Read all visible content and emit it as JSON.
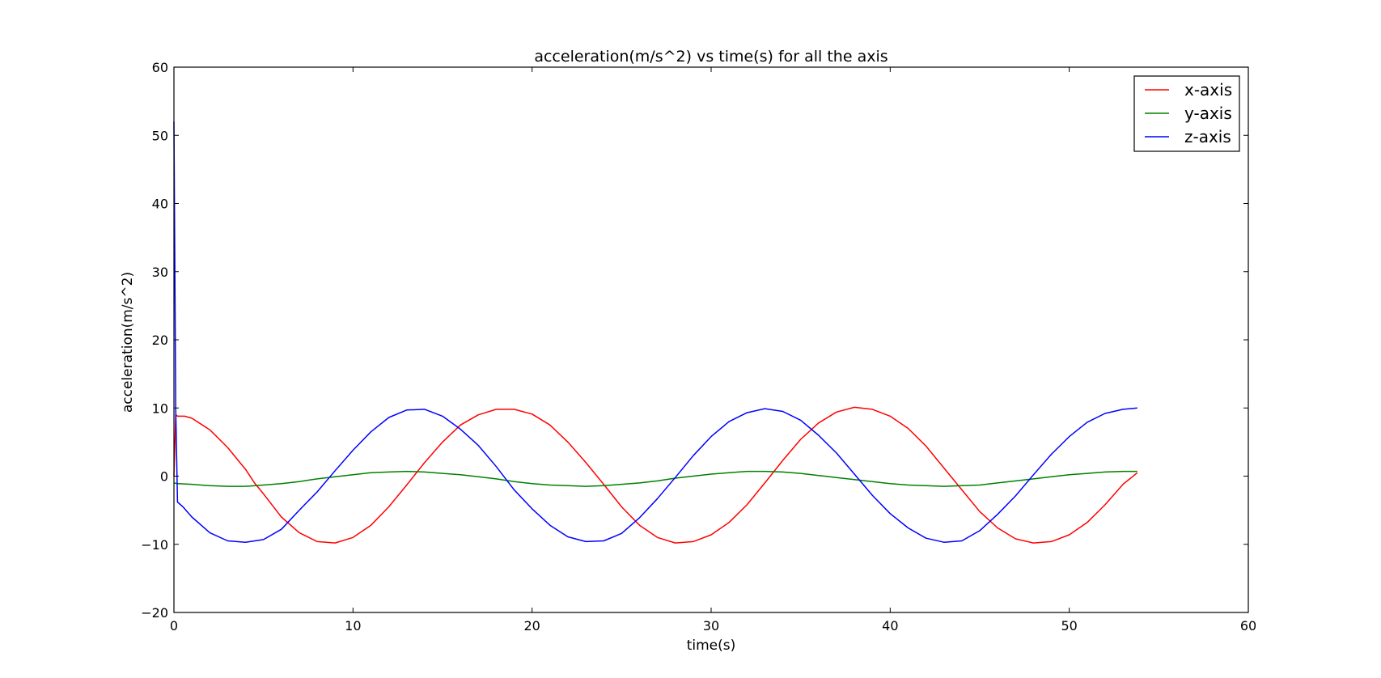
{
  "chart_data": {
    "type": "line",
    "title": "acceleration(m/s^2) vs time(s) for all the axis",
    "xlabel": "time(s)",
    "ylabel": "acceleration(m/s^2)",
    "xlim": [
      0,
      60
    ],
    "ylim": [
      -20,
      60
    ],
    "xticks": [
      0,
      10,
      20,
      30,
      40,
      50,
      60
    ],
    "yticks": [
      -20,
      -10,
      0,
      10,
      20,
      30,
      40,
      50,
      60
    ],
    "grid": false,
    "legend_position": "top-right",
    "series": [
      {
        "name": "x-axis",
        "color": "#ff0000",
        "x": [
          0,
          0.1,
          0.2,
          0.6,
          1,
          2,
          3,
          4,
          4.5,
          5,
          6,
          7,
          8,
          9,
          10,
          11,
          12,
          13,
          14,
          15,
          16,
          17,
          18,
          19,
          20,
          21,
          22,
          23,
          24,
          25,
          26,
          27,
          28,
          29,
          30,
          31,
          32,
          33,
          34,
          35,
          36,
          37,
          38,
          39,
          40,
          41,
          42,
          43,
          44,
          45,
          46,
          47,
          48,
          49,
          50,
          51,
          52,
          53,
          53.8
        ],
        "y": [
          0,
          9,
          8.8,
          8.8,
          8.5,
          6.8,
          4.2,
          1.0,
          -1.0,
          -2.6,
          -6.0,
          -8.3,
          -9.6,
          -9.8,
          -9.0,
          -7.2,
          -4.5,
          -1.3,
          2.0,
          5.0,
          7.5,
          9.0,
          9.8,
          9.8,
          9.1,
          7.5,
          5.0,
          2.0,
          -1.2,
          -4.5,
          -7.2,
          -9.0,
          -9.8,
          -9.6,
          -8.6,
          -6.8,
          -4.2,
          -1.0,
          2.3,
          5.4,
          7.8,
          9.4,
          10.1,
          9.8,
          8.8,
          7.0,
          4.4,
          1.2,
          -2.0,
          -5.2,
          -7.6,
          -9.2,
          -9.8,
          -9.6,
          -8.6,
          -6.8,
          -4.2,
          -1.2,
          0.5
        ]
      },
      {
        "name": "y-axis",
        "color": "#008000",
        "x": [
          0,
          0.2,
          1,
          2,
          3,
          4,
          5,
          6,
          7,
          8,
          9,
          10,
          11,
          12,
          13,
          14,
          15,
          16,
          17,
          18,
          19,
          20,
          21,
          22,
          23,
          24,
          25,
          26,
          27,
          28,
          29,
          30,
          31,
          32,
          33,
          34,
          35,
          36,
          37,
          38,
          39,
          40,
          41,
          42,
          43,
          44,
          45,
          46,
          47,
          48,
          49,
          50,
          51,
          52,
          53,
          53.8
        ],
        "y": [
          -1,
          -1.1,
          -1.2,
          -1.4,
          -1.5,
          -1.5,
          -1.3,
          -1.1,
          -0.8,
          -0.4,
          -0.1,
          0.2,
          0.5,
          0.6,
          0.7,
          0.6,
          0.4,
          0.2,
          -0.1,
          -0.4,
          -0.8,
          -1.1,
          -1.3,
          -1.4,
          -1.5,
          -1.4,
          -1.2,
          -1.0,
          -0.7,
          -0.3,
          0.0,
          0.3,
          0.5,
          0.7,
          0.7,
          0.6,
          0.4,
          0.1,
          -0.2,
          -0.5,
          -0.8,
          -1.1,
          -1.3,
          -1.4,
          -1.5,
          -1.4,
          -1.3,
          -1.0,
          -0.7,
          -0.4,
          -0.1,
          0.2,
          0.4,
          0.6,
          0.7,
          0.7
        ]
      },
      {
        "name": "z-axis",
        "color": "#0000ff",
        "x": [
          0,
          0.1,
          0.2,
          0.5,
          1,
          2,
          3,
          4,
          5,
          6,
          7,
          8,
          9,
          10,
          11,
          12,
          13,
          14,
          15,
          16,
          17,
          18,
          19,
          20,
          21,
          22,
          23,
          24,
          25,
          26,
          27,
          28,
          29,
          30,
          31,
          32,
          33,
          34,
          35,
          36,
          37,
          38,
          39,
          40,
          41,
          42,
          43,
          44,
          45,
          46,
          47,
          48,
          49,
          50,
          51,
          52,
          53,
          53.8
        ],
        "y": [
          52,
          10,
          -3.8,
          -4.5,
          -6.0,
          -8.3,
          -9.5,
          -9.7,
          -9.3,
          -7.8,
          -5.0,
          -2.3,
          0.8,
          3.8,
          6.5,
          8.6,
          9.7,
          9.8,
          8.8,
          6.9,
          4.5,
          1.4,
          -2.0,
          -4.8,
          -7.2,
          -8.9,
          -9.6,
          -9.5,
          -8.4,
          -6.1,
          -3.3,
          -0.2,
          3.0,
          5.8,
          8.0,
          9.3,
          9.9,
          9.5,
          8.2,
          6.0,
          3.4,
          0.3,
          -2.8,
          -5.5,
          -7.6,
          -9.1,
          -9.7,
          -9.5,
          -8.0,
          -5.6,
          -2.9,
          0.2,
          3.2,
          5.8,
          7.9,
          9.2,
          9.8,
          10.0
        ]
      }
    ]
  }
}
